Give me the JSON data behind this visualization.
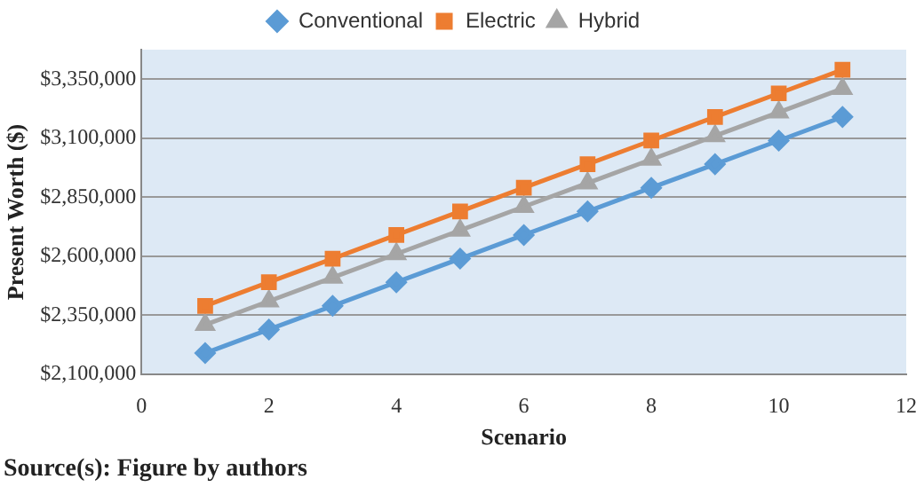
{
  "chart_data": {
    "type": "line",
    "xlabel": "Scenario",
    "ylabel": "Present Worth ($)",
    "x": [
      1,
      2,
      3,
      4,
      5,
      6,
      7,
      8,
      9,
      10,
      11
    ],
    "series": [
      {
        "name": "Conventional",
        "color": "#5b9bd5",
        "marker": "diamond",
        "values": [
          2190000,
          2290000,
          2390000,
          2490000,
          2590000,
          2690000,
          2790000,
          2890000,
          2990000,
          3090000,
          3190000
        ]
      },
      {
        "name": "Electric",
        "color": "#ed7d31",
        "marker": "square",
        "values": [
          2390000,
          2490000,
          2590000,
          2690000,
          2790000,
          2890000,
          2990000,
          3090000,
          3190000,
          3290000,
          3390000
        ]
      },
      {
        "name": "Hybrid",
        "color": "#a5a5a5",
        "marker": "triangle",
        "values": [
          2310000,
          2410000,
          2510000,
          2610000,
          2710000,
          2810000,
          2910000,
          3010000,
          3110000,
          3210000,
          3310000
        ]
      }
    ],
    "xlim": [
      0,
      12
    ],
    "xticks": [
      0,
      2,
      4,
      6,
      8,
      10,
      12
    ],
    "ylim": [
      2100000,
      3475000
    ],
    "yticks": [
      {
        "value": 2100000,
        "label": "$2,100,000"
      },
      {
        "value": 2350000,
        "label": "$2,350,000"
      },
      {
        "value": 2600000,
        "label": "$2,600,000"
      },
      {
        "value": 2850000,
        "label": "$2,850,000"
      },
      {
        "value": 3100000,
        "label": "$3,100,000"
      },
      {
        "value": 3350000,
        "label": "$3,350,000"
      }
    ],
    "grid": "y",
    "legend": "top",
    "line_style": "solid",
    "annotations": [
      "Source(s): Figure by authors"
    ]
  }
}
